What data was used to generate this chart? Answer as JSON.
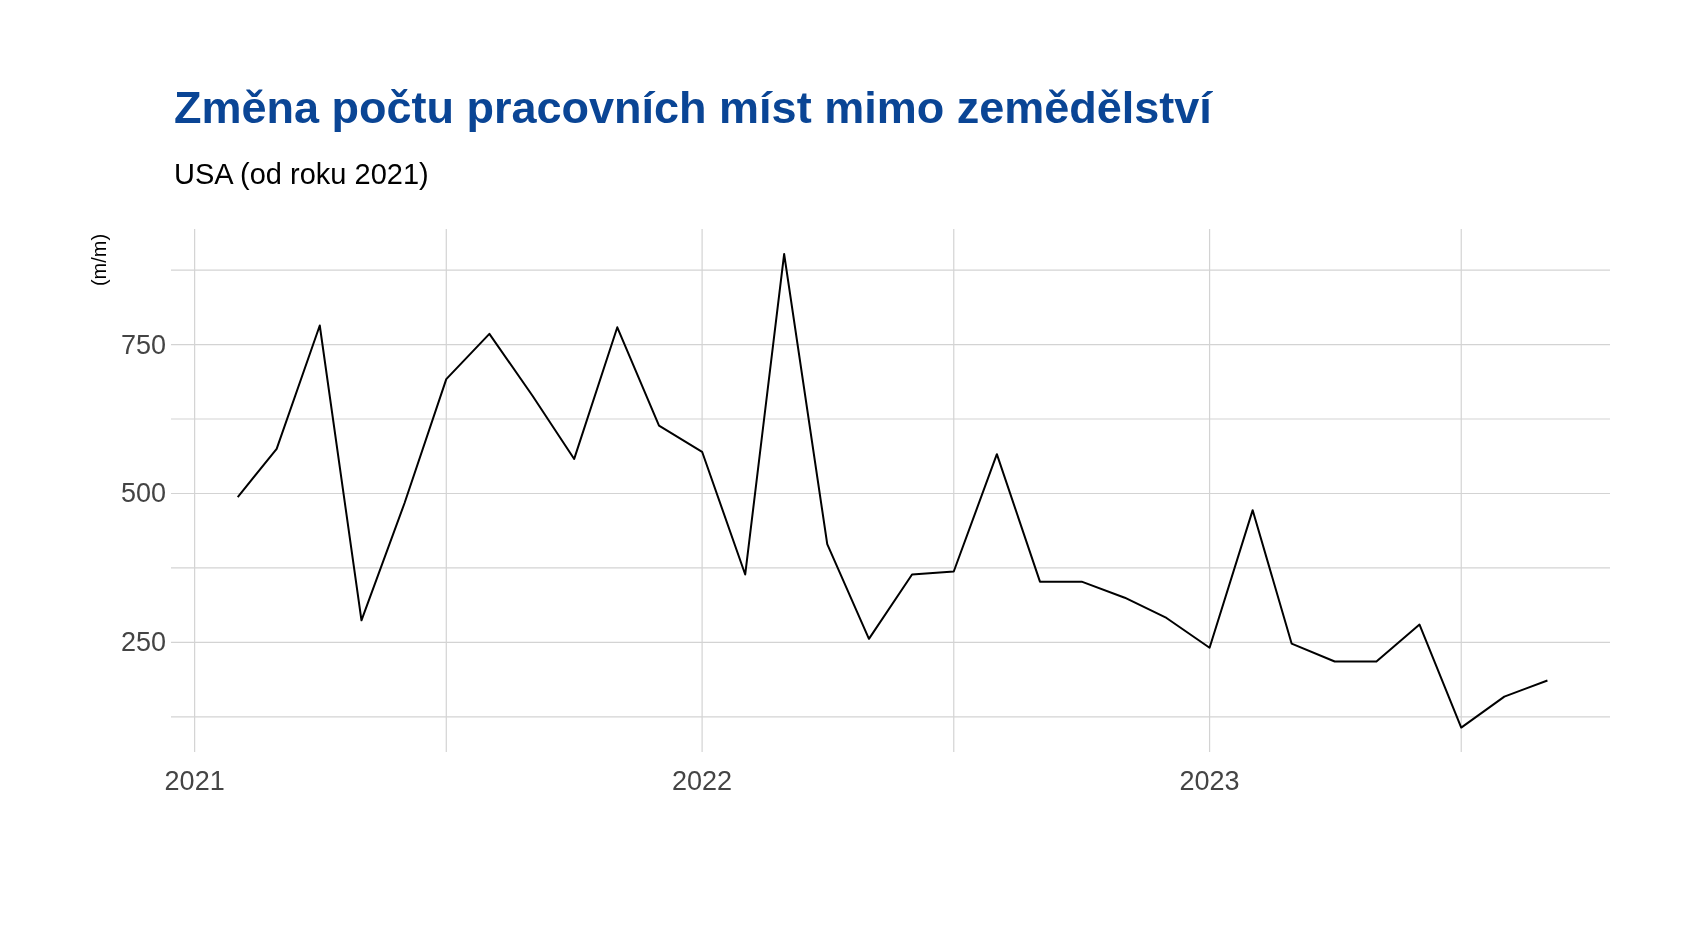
{
  "chart_data": {
    "type": "line",
    "title": "Změna počtu pracovních míst mimo zemědělství",
    "subtitle": "USA (od roku 2021)",
    "ylabel": "(m/m)",
    "x": [
      "2021-02",
      "2021-03",
      "2021-04",
      "2021-05",
      "2021-06",
      "2021-07",
      "2021-08",
      "2021-09",
      "2021-10",
      "2021-11",
      "2021-12",
      "2022-01",
      "2022-02",
      "2022-03",
      "2022-04",
      "2022-05",
      "2022-06",
      "2022-07",
      "2022-08",
      "2022-09",
      "2022-10",
      "2022-11",
      "2022-12",
      "2023-01",
      "2023-02",
      "2023-03",
      "2023-04",
      "2023-05",
      "2023-06",
      "2023-07",
      "2023-08",
      "2023-09"
    ],
    "series": [
      {
        "color": "#000000",
        "values": [
          494,
          575,
          782,
          287,
          484,
          692,
          768,
          664,
          558,
          779,
          614,
          570,
          364,
          902,
          415,
          256,
          364,
          369,
          566,
          352,
          352,
          325,
          291,
          241,
          472,
          248,
          218,
          218,
          280,
          107,
          159,
          186
        ]
      }
    ],
    "xlim": [
      "2020-12-15",
      "2023-10-16"
    ],
    "xticks": [
      {
        "value": "2021",
        "label": "2021"
      },
      {
        "value": "2021-07",
        "label": null
      },
      {
        "value": "2022",
        "label": "2022"
      },
      {
        "value": "2022-07",
        "label": null
      },
      {
        "value": "2023",
        "label": "2023"
      },
      {
        "value": "2023-07",
        "label": null
      }
    ],
    "ylim": [
      66,
      944
    ],
    "yticks": [
      {
        "value": 125,
        "label": null
      },
      250,
      {
        "value": 375,
        "label": null
      },
      500,
      {
        "value": 625,
        "label": null
      },
      750,
      {
        "value": 875,
        "label": null
      }
    ],
    "grid": true,
    "marker": "none",
    "line_style": "solid"
  }
}
